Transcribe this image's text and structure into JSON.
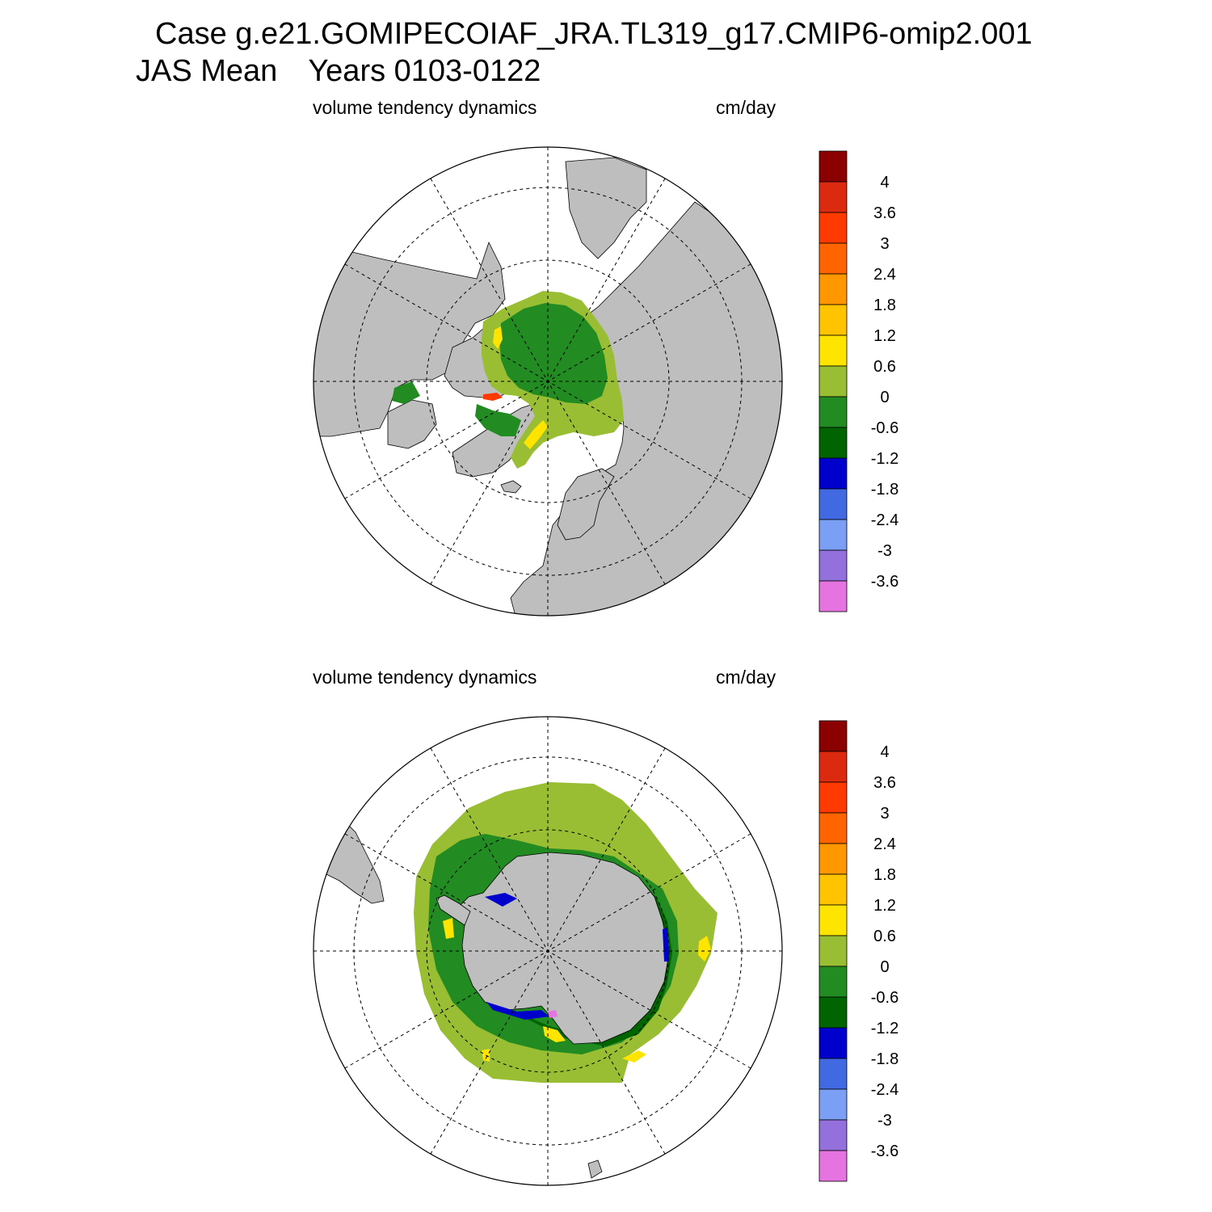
{
  "header": {
    "case_line": "Case g.e21.GOMIPECOIAF_JRA.TL319_g17.CMIP6-omip2.001",
    "season": "JAS Mean",
    "years": "Years 0103-0122"
  },
  "panels": [
    {
      "id": "north",
      "hemisphere": "Arctic",
      "left_title": "volume tendency dynamics",
      "right_title": "cm/day"
    },
    {
      "id": "south",
      "hemisphere": "Antarctic",
      "left_title": "volume tendency dynamics",
      "right_title": "cm/day"
    }
  ],
  "colorbar": {
    "units": "cm/day",
    "labels": [
      "4",
      "3.6",
      "3",
      "2.4",
      "1.8",
      "1.2",
      "0.6",
      "0",
      "-0.6",
      "-1.2",
      "-1.8",
      "-2.4",
      "-3",
      "-3.6"
    ],
    "colors": [
      "#8b0000",
      "#db2a10",
      "#ff3a00",
      "#ff6400",
      "#ff9800",
      "#ffc300",
      "#ffe400",
      "#99bd33",
      "#228b22",
      "#006400",
      "#0000cd",
      "#4169e1",
      "#7b9ff5",
      "#9370db",
      "#e573e0"
    ]
  },
  "colors": {
    "land": "#bebebe",
    "ocean": "#ffffff",
    "grid": "#000000"
  }
}
